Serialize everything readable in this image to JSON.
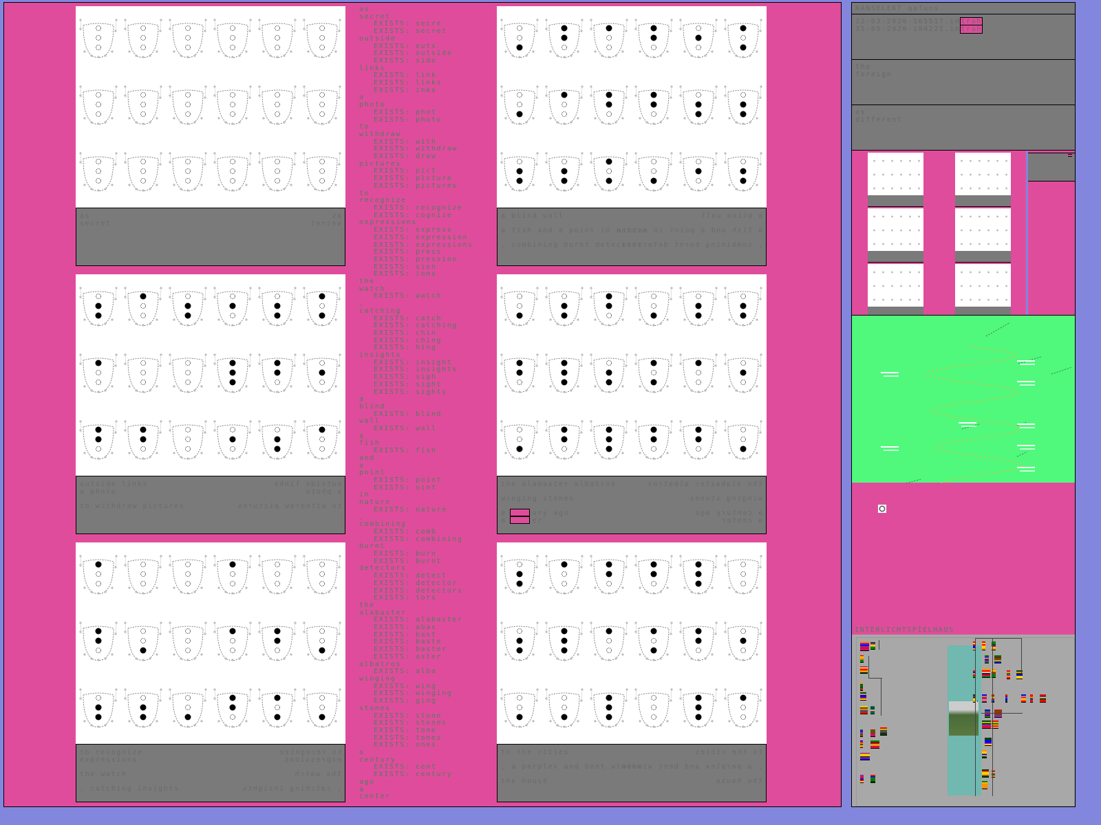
{
  "colors": {
    "background": "#e04c9c",
    "frame": "#8286dc",
    "caption": "#7a7a7a",
    "text": "#557a62",
    "green": "#50f87c"
  },
  "panels": [
    {
      "lines": [
        "as",
        "secret"
      ]
    },
    {
      "lines": [
        "a blind wall",
        "",
        "a fish and a point in nature",
        "",
        ", combining burnt detectors"
      ]
    },
    {
      "lines": [
        "outside links",
        "a photo",
        "",
        "to withdraw pictures"
      ]
    },
    {
      "lines": [
        "the alabaster albatros",
        "",
        "winging stones",
        "",
        "a century ago",
        "a center"
      ],
      "highlight": "cent"
    },
    {
      "lines": [
        "to recognize",
        "expressions",
        "",
        "the watch",
        "",
        ", catching insights"
      ]
    },
    {
      "lines": [
        "to the cities",
        "",
        ", a perplex and bent window",
        "",
        "the house"
      ]
    }
  ],
  "exists_label": "EXISTS:",
  "words": [
    {
      "w": "as",
      "e": []
    },
    {
      "w": "secret",
      "e": [
        "secre",
        "secret"
      ]
    },
    {
      "w": "outside",
      "e": [
        "outs",
        "outside",
        "side"
      ]
    },
    {
      "w": "links",
      "e": [
        "link",
        "links",
        "inks"
      ]
    },
    {
      "w": "a",
      "e": []
    },
    {
      "w": "photo",
      "e": [
        "phot",
        "photo"
      ]
    },
    {
      "w": "to",
      "e": []
    },
    {
      "w": "withdraw",
      "e": [
        "with",
        "withdraw",
        "draw"
      ]
    },
    {
      "w": "pictures",
      "e": [
        "pict",
        "picture",
        "pictures"
      ]
    },
    {
      "w": "to",
      "e": []
    },
    {
      "w": "recognize",
      "e": [
        "recognize",
        "cognize"
      ]
    },
    {
      "w": "expressions",
      "e": [
        "express",
        "expression",
        "expressions",
        "press",
        "pression",
        "sion",
        "ions"
      ]
    },
    {
      "w": "the",
      "e": []
    },
    {
      "w": "watch",
      "e": [
        "watch"
      ]
    },
    {
      "w": ",",
      "e": []
    },
    {
      "w": "catching",
      "e": [
        "catch",
        "catching",
        "chin",
        "ching",
        "hing"
      ]
    },
    {
      "w": "insights",
      "e": [
        "insight",
        "insights",
        "sigh",
        "sight",
        "sights"
      ]
    },
    {
      "w": "a",
      "e": []
    },
    {
      "w": "blind",
      "e": [
        "blind"
      ]
    },
    {
      "w": "wall",
      "e": [
        "wall"
      ]
    },
    {
      "w": "a",
      "e": []
    },
    {
      "w": "fish",
      "e": [
        "fish"
      ]
    },
    {
      "w": "and",
      "e": []
    },
    {
      "w": "a",
      "e": []
    },
    {
      "w": "point",
      "e": [
        "point",
        "oint"
      ]
    },
    {
      "w": "in",
      "e": []
    },
    {
      "w": "nature",
      "e": [
        "nature"
      ]
    },
    {
      "w": ",",
      "e": []
    },
    {
      "w": "combining",
      "e": [
        "comb",
        "combining"
      ]
    },
    {
      "w": "burnt",
      "e": [
        "burn",
        "burnt"
      ]
    },
    {
      "w": "detectors",
      "e": [
        "detect",
        "detector",
        "detectors",
        "tors"
      ]
    },
    {
      "w": "the",
      "e": []
    },
    {
      "w": "alabaster",
      "e": [
        "alabaster",
        "abas",
        "bast",
        "baste",
        "baster",
        "aster"
      ]
    },
    {
      "w": "albatros",
      "e": [
        "alba"
      ]
    },
    {
      "w": "winging",
      "e": [
        "wing",
        "winging",
        "ging"
      ]
    },
    {
      "w": "stones",
      "e": [
        "stone",
        "stones",
        "tone",
        "tones",
        "ones"
      ]
    },
    {
      "w": "a",
      "e": []
    },
    {
      "w": "century",
      "e": [
        "cent",
        "century"
      ]
    },
    {
      "w": "ago",
      "e": []
    },
    {
      "w": "a",
      "e": []
    },
    {
      "w": "center",
      "e": []
    }
  ],
  "side": {
    "header": "NANSELEKT qafuos",
    "files": [
      {
        "name": "22-03-2020-165517.in",
        "tag": "trah"
      },
      {
        "name": "31-05-2020-184221.in",
        "tag": "trah"
      }
    ],
    "box1": [
      "the",
      "foreign"
    ],
    "box2": [
      "as",
      "different"
    ],
    "bottom_title": "INTERLICHTSPIELHAUS"
  }
}
